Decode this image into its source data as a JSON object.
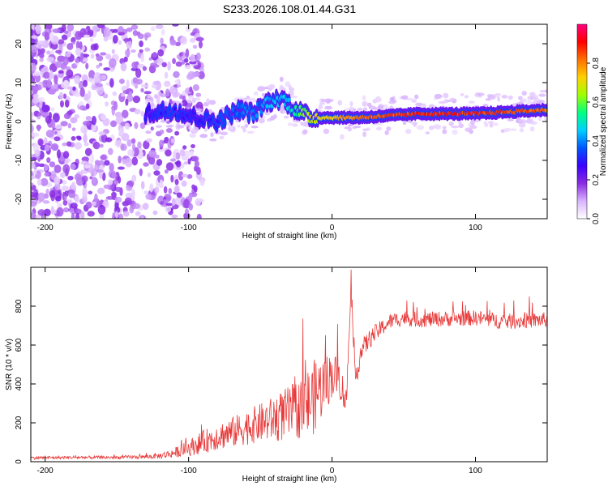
{
  "figure_title": "S233.2026.108.01.44.G31",
  "colors": {
    "snr_line": "#e83a3a",
    "frame": "#000000",
    "colormap": [
      "#ffffff",
      "#d9b3ff",
      "#8a2be2",
      "#3b00ff",
      "#0055ff",
      "#00d0ff",
      "#00ff80",
      "#a0ff00",
      "#ffd000",
      "#ff7000",
      "#ff0000",
      "#ff0080"
    ]
  },
  "chart_data": [
    {
      "type": "heatmap",
      "title": "",
      "xlabel": "Height of straight line (km)",
      "ylabel": "Frequency (Hz)",
      "xlim": [
        -210,
        150
      ],
      "ylim": [
        -25,
        25
      ],
      "x_ticks": [
        -200,
        -100,
        0,
        100
      ],
      "x_tick_labels": [
        "-200",
        "-100",
        "0",
        "100"
      ],
      "y_ticks": [
        -20,
        -10,
        0,
        10,
        20
      ],
      "y_tick_labels": [
        "-20",
        "-10",
        "0",
        "10",
        "20"
      ],
      "ridge": {
        "description": "main spectral ridge center frequency vs height",
        "x": [
          -130,
          -110,
          -95,
          -80,
          -65,
          -55,
          -45,
          -35,
          -25,
          -15,
          0,
          20,
          60,
          100,
          150
        ],
        "freq": [
          2,
          3,
          1,
          0,
          3,
          2,
          5,
          6,
          3,
          1,
          1,
          1,
          2,
          2,
          3
        ],
        "peak_amplitude": [
          0.3,
          0.35,
          0.3,
          0.35,
          0.4,
          0.4,
          0.45,
          0.45,
          0.55,
          0.7,
          0.75,
          0.85,
          0.9,
          0.9,
          0.85
        ]
      }
    },
    {
      "type": "colorbar",
      "label": "Normalized spectral amplitude",
      "range": [
        0,
        1
      ],
      "ticks": [
        0,
        0.2,
        0.4,
        0.6,
        0.8
      ],
      "tick_labels": [
        "0.0",
        "0.2",
        "0.4",
        "0.6",
        "0.8"
      ]
    },
    {
      "type": "line",
      "title": "",
      "xlabel": "Height of straight line (km)",
      "ylabel": "SNR (10 * v/v)",
      "xlim": [
        -210,
        150
      ],
      "ylim": [
        0,
        1000
      ],
      "x_ticks": [
        -200,
        -100,
        0,
        100
      ],
      "x_tick_labels": [
        "-200",
        "-100",
        "0",
        "100"
      ],
      "y_ticks": [
        0,
        200,
        400,
        600,
        800
      ],
      "y_tick_labels": [
        "0",
        "200",
        "400",
        "600",
        "800"
      ],
      "series": [
        {
          "name": "SNR",
          "x": [
            -210,
            -180,
            -150,
            -130,
            -120,
            -110,
            -100,
            -90,
            -80,
            -70,
            -60,
            -50,
            -40,
            -30,
            -20,
            -15,
            -10,
            -5,
            0,
            5,
            10,
            13,
            16,
            20,
            25,
            30,
            40,
            50,
            60,
            80,
            100,
            120,
            150
          ],
          "y": [
            20,
            22,
            22,
            25,
            30,
            45,
            70,
            100,
            130,
            150,
            175,
            200,
            220,
            250,
            280,
            310,
            360,
            400,
            450,
            430,
            300,
            900,
            420,
            560,
            620,
            660,
            720,
            740,
            730,
            735,
            740,
            720,
            730
          ],
          "noise_amplitude": [
            8,
            8,
            8,
            10,
            15,
            25,
            40,
            60,
            70,
            80,
            90,
            100,
            120,
            140,
            160,
            200,
            180,
            150,
            120,
            100,
            80,
            50,
            60,
            60,
            50,
            45,
            40,
            40,
            40,
            40,
            40,
            40,
            40
          ]
        }
      ]
    }
  ]
}
